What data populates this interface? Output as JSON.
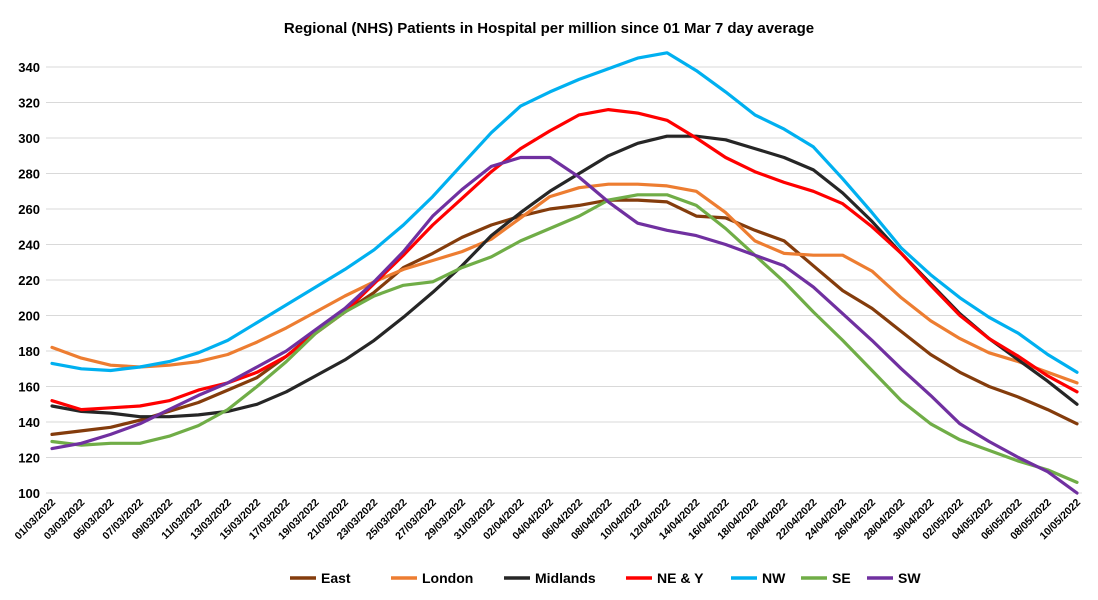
{
  "chart_data": {
    "type": "line",
    "title": "Regional (NHS) Patients in Hospital per million since 01 Mar 7 day average",
    "xlabel": "",
    "ylabel": "",
    "ylim": [
      100,
      340
    ],
    "yticks": [
      100,
      120,
      140,
      160,
      180,
      200,
      220,
      240,
      260,
      280,
      300,
      320,
      340
    ],
    "grid": true,
    "legend_position": "bottom",
    "x": [
      "01/03/2022",
      "03/03/2022",
      "05/03/2022",
      "07/03/2022",
      "09/03/2022",
      "11/03/2022",
      "13/03/2022",
      "15/03/2022",
      "17/03/2022",
      "19/03/2022",
      "21/03/2022",
      "23/03/2022",
      "25/03/2022",
      "27/03/2022",
      "29/03/2022",
      "31/03/2022",
      "02/04/2022",
      "04/04/2022",
      "06/04/2022",
      "08/04/2022",
      "10/04/2022",
      "12/04/2022",
      "14/04/2022",
      "16/04/2022",
      "18/04/2022",
      "20/04/2022",
      "22/04/2022",
      "24/04/2022",
      "26/04/2022",
      "28/04/2022",
      "30/04/2022",
      "02/05/2022",
      "04/05/2022",
      "06/05/2022",
      "08/05/2022",
      "10/05/2022"
    ],
    "series": [
      {
        "name": "East",
        "color": "#843C0C",
        "values": [
          133,
          135,
          137,
          141,
          146,
          151,
          158,
          165,
          177,
          191,
          202,
          213,
          227,
          235,
          244,
          251,
          256,
          260,
          262,
          265,
          265,
          264,
          256,
          255,
          248,
          242,
          228,
          214,
          204,
          191,
          178,
          168,
          160,
          154,
          147,
          139
        ]
      },
      {
        "name": "London",
        "color": "#ED7D31",
        "values": [
          182,
          176,
          172,
          171,
          172,
          174,
          178,
          185,
          193,
          202,
          211,
          219,
          226,
          231,
          236,
          243,
          255,
          267,
          272,
          274,
          274,
          273,
          270,
          258,
          242,
          235,
          234,
          234,
          225,
          210,
          197,
          187,
          179,
          174,
          168,
          162
        ]
      },
      {
        "name": "Midlands",
        "color": "#262626",
        "values": [
          149,
          146,
          145,
          143,
          143,
          144,
          146,
          150,
          157,
          166,
          175,
          186,
          199,
          213,
          228,
          245,
          258,
          270,
          280,
          290,
          297,
          301,
          301,
          299,
          294,
          289,
          282,
          269,
          253,
          235,
          218,
          201,
          187,
          175,
          163,
          150
        ]
      },
      {
        "name": "NE & Y",
        "color": "#FF0000",
        "values": [
          152,
          147,
          148,
          149,
          152,
          158,
          162,
          168,
          177,
          190,
          202,
          218,
          234,
          251,
          266,
          281,
          294,
          304,
          313,
          316,
          314,
          310,
          300,
          289,
          281,
          275,
          270,
          263,
          250,
          235,
          217,
          200,
          187,
          177,
          166,
          157
        ]
      },
      {
        "name": "NW",
        "color": "#00B0F0",
        "values": [
          173,
          170,
          169,
          171,
          174,
          179,
          186,
          196,
          206,
          216,
          226,
          237,
          251,
          267,
          285,
          303,
          318,
          326,
          333,
          339,
          345,
          348,
          338,
          326,
          313,
          305,
          295,
          277,
          258,
          238,
          223,
          210,
          199,
          190,
          178,
          168
        ]
      },
      {
        "name": "SE",
        "color": "#70AD47",
        "values": [
          129,
          127,
          128,
          128,
          132,
          138,
          147,
          160,
          174,
          190,
          202,
          211,
          217,
          219,
          227,
          233,
          242,
          249,
          256,
          265,
          268,
          268,
          262,
          249,
          234,
          219,
          202,
          186,
          169,
          152,
          139,
          130,
          124,
          118,
          113,
          106
        ]
      },
      {
        "name": "SW",
        "color": "#7030A0",
        "values": [
          125,
          128,
          133,
          139,
          147,
          155,
          162,
          171,
          180,
          192,
          204,
          219,
          236,
          256,
          271,
          284,
          289,
          289,
          278,
          264,
          252,
          248,
          245,
          240,
          234,
          228,
          216,
          201,
          186,
          170,
          155,
          139,
          129,
          120,
          112,
          100
        ]
      }
    ]
  }
}
